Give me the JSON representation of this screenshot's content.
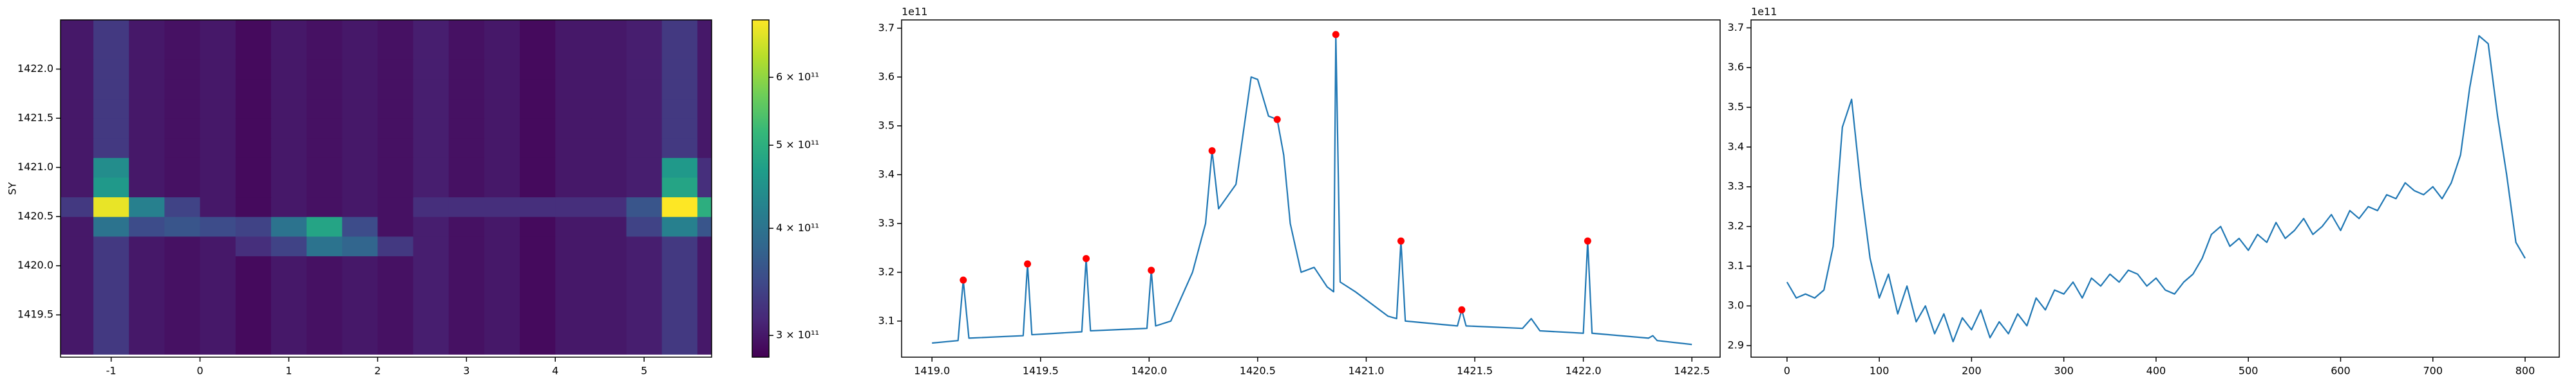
{
  "chart_data": [
    {
      "type": "heatmap",
      "ylabel": "SY",
      "xlim": [
        -1.57,
        5.76
      ],
      "ylim": [
        1419.07,
        1422.5
      ],
      "xticks": [
        -1,
        0,
        1,
        2,
        3,
        4,
        5
      ],
      "yticks": [
        {
          "value": 1419.5,
          "label": "1419.5"
        },
        {
          "value": 1420,
          "label": "1420.0"
        },
        1420.5,
        {
          "value": 1421,
          "label": "1421.0"
        },
        1421.5,
        {
          "value": 1422,
          "label": "1422.0"
        }
      ],
      "x": [
        -1.4,
        -1.0,
        -0.6,
        -0.2,
        0.2,
        0.6,
        1.0,
        1.4,
        1.8,
        2.2,
        2.6,
        3.0,
        3.4,
        3.8,
        4.2,
        4.6,
        5.0,
        5.4,
        5.8
      ],
      "y": [
        1419.2,
        1419.4,
        1419.6,
        1419.8,
        1420.0,
        1420.2,
        1420.4,
        1420.6,
        1420.8,
        1421.0,
        1421.2,
        1421.4,
        1421.6,
        1421.8,
        1422.0,
        1422.2,
        1422.4
      ],
      "z": [
        [
          300000000000.0,
          330000000000.0,
          300000000000.0,
          295000000000.0,
          300000000000.0,
          290000000000.0,
          300000000000.0,
          295000000000.0,
          300000000000.0,
          295000000000.0,
          305000000000.0,
          295000000000.0,
          300000000000.0,
          290000000000.0,
          300000000000.0,
          300000000000.0,
          305000000000.0,
          330000000000.0,
          300000000000.0
        ],
        [
          300000000000.0,
          330000000000.0,
          300000000000.0,
          295000000000.0,
          300000000000.0,
          290000000000.0,
          300000000000.0,
          295000000000.0,
          300000000000.0,
          295000000000.0,
          305000000000.0,
          295000000000.0,
          300000000000.0,
          290000000000.0,
          300000000000.0,
          300000000000.0,
          305000000000.0,
          330000000000.0,
          300000000000.0
        ],
        [
          300000000000.0,
          330000000000.0,
          300000000000.0,
          295000000000.0,
          300000000000.0,
          290000000000.0,
          300000000000.0,
          295000000000.0,
          300000000000.0,
          295000000000.0,
          305000000000.0,
          295000000000.0,
          300000000000.0,
          290000000000.0,
          300000000000.0,
          300000000000.0,
          305000000000.0,
          330000000000.0,
          300000000000.0
        ],
        [
          300000000000.0,
          330000000000.0,
          300000000000.0,
          295000000000.0,
          300000000000.0,
          290000000000.0,
          300000000000.0,
          295000000000.0,
          300000000000.0,
          295000000000.0,
          305000000000.0,
          295000000000.0,
          300000000000.0,
          290000000000.0,
          300000000000.0,
          300000000000.0,
          305000000000.0,
          330000000000.0,
          300000000000.0
        ],
        [
          300000000000.0,
          330000000000.0,
          300000000000.0,
          295000000000.0,
          300000000000.0,
          290000000000.0,
          300000000000.0,
          295000000000.0,
          300000000000.0,
          295000000000.0,
          305000000000.0,
          295000000000.0,
          300000000000.0,
          290000000000.0,
          300000000000.0,
          300000000000.0,
          305000000000.0,
          330000000000.0,
          300000000000.0
        ],
        [
          300000000000.0,
          330000000000.0,
          300000000000.0,
          295000000000.0,
          300000000000.0,
          320000000000.0,
          340000000000.0,
          400000000000.0,
          380000000000.0,
          330000000000.0,
          305000000000.0,
          295000000000.0,
          300000000000.0,
          290000000000.0,
          300000000000.0,
          300000000000.0,
          305000000000.0,
          330000000000.0,
          300000000000.0
        ],
        [
          300000000000.0,
          400000000000.0,
          350000000000.0,
          360000000000.0,
          350000000000.0,
          340000000000.0,
          400000000000.0,
          480000000000.0,
          350000000000.0,
          295000000000.0,
          305000000000.0,
          295000000000.0,
          300000000000.0,
          290000000000.0,
          300000000000.0,
          300000000000.0,
          340000000000.0,
          420000000000.0,
          360000000000.0
        ],
        [
          330000000000.0,
          680000000000.0,
          420000000000.0,
          340000000000.0,
          300000000000.0,
          290000000000.0,
          300000000000.0,
          295000000000.0,
          300000000000.0,
          295000000000.0,
          320000000000.0,
          320000000000.0,
          320000000000.0,
          320000000000.0,
          320000000000.0,
          320000000000.0,
          360000000000.0,
          700000000000.0,
          500000000000.0
        ],
        [
          300000000000.0,
          460000000000.0,
          300000000000.0,
          295000000000.0,
          300000000000.0,
          290000000000.0,
          300000000000.0,
          295000000000.0,
          300000000000.0,
          295000000000.0,
          305000000000.0,
          295000000000.0,
          300000000000.0,
          290000000000.0,
          300000000000.0,
          300000000000.0,
          305000000000.0,
          480000000000.0,
          320000000000.0
        ],
        [
          300000000000.0,
          440000000000.0,
          300000000000.0,
          295000000000.0,
          300000000000.0,
          290000000000.0,
          300000000000.0,
          295000000000.0,
          300000000000.0,
          295000000000.0,
          305000000000.0,
          295000000000.0,
          300000000000.0,
          290000000000.0,
          300000000000.0,
          300000000000.0,
          305000000000.0,
          460000000000.0,
          320000000000.0
        ],
        [
          300000000000.0,
          330000000000.0,
          300000000000.0,
          295000000000.0,
          300000000000.0,
          290000000000.0,
          300000000000.0,
          295000000000.0,
          300000000000.0,
          295000000000.0,
          305000000000.0,
          295000000000.0,
          300000000000.0,
          290000000000.0,
          300000000000.0,
          300000000000.0,
          305000000000.0,
          330000000000.0,
          300000000000.0
        ],
        [
          300000000000.0,
          330000000000.0,
          300000000000.0,
          295000000000.0,
          300000000000.0,
          290000000000.0,
          300000000000.0,
          295000000000.0,
          300000000000.0,
          295000000000.0,
          305000000000.0,
          295000000000.0,
          300000000000.0,
          290000000000.0,
          300000000000.0,
          300000000000.0,
          305000000000.0,
          330000000000.0,
          300000000000.0
        ],
        [
          300000000000.0,
          330000000000.0,
          300000000000.0,
          295000000000.0,
          300000000000.0,
          290000000000.0,
          300000000000.0,
          295000000000.0,
          300000000000.0,
          295000000000.0,
          305000000000.0,
          295000000000.0,
          300000000000.0,
          290000000000.0,
          300000000000.0,
          300000000000.0,
          305000000000.0,
          330000000000.0,
          300000000000.0
        ],
        [
          300000000000.0,
          330000000000.0,
          300000000000.0,
          295000000000.0,
          300000000000.0,
          290000000000.0,
          300000000000.0,
          295000000000.0,
          300000000000.0,
          295000000000.0,
          305000000000.0,
          295000000000.0,
          300000000000.0,
          290000000000.0,
          300000000000.0,
          300000000000.0,
          305000000000.0,
          330000000000.0,
          300000000000.0
        ],
        [
          300000000000.0,
          330000000000.0,
          300000000000.0,
          295000000000.0,
          300000000000.0,
          290000000000.0,
          300000000000.0,
          295000000000.0,
          300000000000.0,
          295000000000.0,
          305000000000.0,
          295000000000.0,
          300000000000.0,
          290000000000.0,
          300000000000.0,
          300000000000.0,
          305000000000.0,
          330000000000.0,
          300000000000.0
        ],
        [
          300000000000.0,
          330000000000.0,
          300000000000.0,
          295000000000.0,
          300000000000.0,
          290000000000.0,
          300000000000.0,
          295000000000.0,
          300000000000.0,
          295000000000.0,
          305000000000.0,
          295000000000.0,
          300000000000.0,
          290000000000.0,
          300000000000.0,
          300000000000.0,
          305000000000.0,
          330000000000.0,
          300000000000.0
        ],
        [
          300000000000.0,
          330000000000.0,
          300000000000.0,
          295000000000.0,
          300000000000.0,
          290000000000.0,
          300000000000.0,
          295000000000.0,
          300000000000.0,
          295000000000.0,
          305000000000.0,
          295000000000.0,
          300000000000.0,
          290000000000.0,
          300000000000.0,
          300000000000.0,
          305000000000.0,
          330000000000.0,
          300000000000.0
        ]
      ],
      "colormap": "viridis",
      "colorbar": {
        "scale": "log",
        "lim": [
          283000000000.0,
          700000000000.0
        ],
        "ticks": [
          {
            "value": 300000000000.0,
            "label": "3 × 10¹¹"
          },
          {
            "value": 400000000000.0,
            "label": "4 × 10¹¹"
          },
          {
            "value": 500000000000.0,
            "label": "5 × 10¹¹"
          },
          {
            "value": 600000000000.0,
            "label": "6 × 10¹¹"
          }
        ]
      }
    },
    {
      "type": "line",
      "offset_text": "1e11",
      "xlim": [
        1418.86,
        1422.63
      ],
      "ylim": [
        3.026,
        3.717
      ],
      "xticks": [
        {
          "value": 1419,
          "label": "1419.0"
        },
        1419.5,
        {
          "value": 1420,
          "label": "1420.0"
        },
        1420.5,
        {
          "value": 1421,
          "label": "1421.0"
        },
        1421.5,
        {
          "value": 1422,
          "label": "1422.0"
        },
        1422.5
      ],
      "yticks": [
        3.1,
        3.2,
        3.3,
        3.4,
        3.5,
        3.6,
        3.7
      ],
      "series": [
        {
          "color": "#1f77b4",
          "style": "line",
          "x": [
            1419.0,
            1419.12,
            1419.144,
            1419.17,
            1419.42,
            1419.44,
            1419.46,
            1419.69,
            1419.71,
            1419.73,
            1419.99,
            1420.01,
            1420.03,
            1420.1,
            1420.2,
            1420.26,
            1420.29,
            1420.32,
            1420.4,
            1420.47,
            1420.5,
            1420.55,
            1420.59,
            1420.62,
            1420.65,
            1420.7,
            1420.76,
            1420.82,
            1420.85,
            1420.86,
            1420.88,
            1420.95,
            1421.1,
            1421.14,
            1421.16,
            1421.18,
            1421.42,
            1421.44,
            1421.46,
            1421.72,
            1421.76,
            1421.8,
            1422.0,
            1422.02,
            1422.04,
            1422.3,
            1422.32,
            1422.34,
            1422.5
          ],
          "values": [
            3.055,
            3.06,
            3.184,
            3.065,
            3.07,
            3.217,
            3.072,
            3.078,
            3.228,
            3.08,
            3.085,
            3.204,
            3.09,
            3.1,
            3.2,
            3.3,
            3.449,
            3.33,
            3.38,
            3.6,
            3.595,
            3.52,
            3.513,
            3.44,
            3.3,
            3.2,
            3.21,
            3.17,
            3.16,
            3.687,
            3.18,
            3.16,
            3.11,
            3.105,
            3.264,
            3.1,
            3.09,
            3.123,
            3.09,
            3.085,
            3.105,
            3.08,
            3.075,
            3.264,
            3.075,
            3.065,
            3.07,
            3.06,
            3.052
          ]
        },
        {
          "color": "#ff0000",
          "style": "markers",
          "x": [
            1419.144,
            1419.44,
            1419.71,
            1420.01,
            1420.29,
            1420.59,
            1420.86,
            1421.16,
            1421.44,
            1422.02
          ],
          "values": [
            3.184,
            3.217,
            3.228,
            3.204,
            3.449,
            3.513,
            3.687,
            3.264,
            3.123,
            3.264
          ]
        }
      ]
    },
    {
      "type": "line",
      "offset_text": "1e11",
      "xlim": [
        -39,
        837
      ],
      "ylim": [
        2.871,
        3.72
      ],
      "xticks": [
        0,
        100,
        200,
        300,
        400,
        500,
        600,
        700,
        800
      ],
      "yticks": [
        2.9,
        {
          "value": 3,
          "label": "3.0"
        },
        3.1,
        3.2,
        3.3,
        3.4,
        3.5,
        3.6,
        3.7
      ],
      "series": [
        {
          "color": "#1f77b4",
          "style": "line",
          "x": [
            0,
            10,
            20,
            30,
            40,
            50,
            60,
            70,
            80,
            90,
            100,
            110,
            120,
            130,
            140,
            150,
            160,
            170,
            180,
            190,
            200,
            210,
            220,
            230,
            240,
            250,
            260,
            270,
            280,
            290,
            300,
            310,
            320,
            330,
            340,
            350,
            360,
            370,
            380,
            390,
            400,
            410,
            420,
            430,
            440,
            450,
            460,
            470,
            480,
            490,
            500,
            510,
            520,
            530,
            540,
            550,
            560,
            570,
            580,
            590,
            600,
            610,
            620,
            630,
            640,
            650,
            660,
            670,
            680,
            690,
            700,
            710,
            720,
            730,
            740,
            750,
            760,
            770,
            780,
            790,
            800
          ],
          "values": [
            3.06,
            3.02,
            3.03,
            3.02,
            3.04,
            3.15,
            3.45,
            3.52,
            3.3,
            3.12,
            3.02,
            3.08,
            2.98,
            3.05,
            2.96,
            3.0,
            2.93,
            2.98,
            2.91,
            2.97,
            2.94,
            2.99,
            2.92,
            2.96,
            2.93,
            2.98,
            2.95,
            3.02,
            2.99,
            3.04,
            3.03,
            3.06,
            3.02,
            3.07,
            3.05,
            3.08,
            3.06,
            3.09,
            3.08,
            3.05,
            3.07,
            3.04,
            3.03,
            3.06,
            3.08,
            3.12,
            3.18,
            3.2,
            3.15,
            3.17,
            3.14,
            3.18,
            3.16,
            3.21,
            3.17,
            3.19,
            3.22,
            3.18,
            3.2,
            3.23,
            3.19,
            3.24,
            3.22,
            3.25,
            3.24,
            3.28,
            3.27,
            3.31,
            3.29,
            3.28,
            3.3,
            3.27,
            3.31,
            3.38,
            3.55,
            3.68,
            3.66,
            3.48,
            3.33,
            3.16,
            3.12
          ]
        }
      ]
    }
  ]
}
